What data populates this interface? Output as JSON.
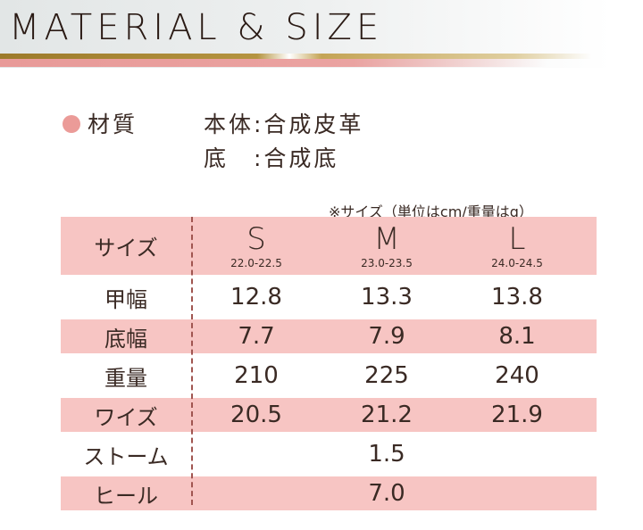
{
  "banner": {
    "title": "MATERIAL & SIZE"
  },
  "material": {
    "label": "材質",
    "lines": [
      "本体:合成皮革",
      "底　:合成底"
    ]
  },
  "note": "※サイズ（単位はcm/重量はg）",
  "table": {
    "header": {
      "label": "サイズ",
      "sizes": [
        {
          "name": "S",
          "range": "22.0-22.5"
        },
        {
          "name": "M",
          "range": "23.0-23.5"
        },
        {
          "name": "L",
          "range": "24.0-24.5"
        }
      ]
    },
    "rows": [
      {
        "label": "甲幅",
        "values": [
          "12.8",
          "13.3",
          "13.8"
        ]
      },
      {
        "label": "底幅",
        "values": [
          "7.7",
          "7.9",
          "8.1"
        ]
      },
      {
        "label": "重量",
        "values": [
          "210",
          "225",
          "240"
        ]
      },
      {
        "label": "ワイズ",
        "values": [
          "20.5",
          "21.2",
          "21.9"
        ]
      },
      {
        "label": "ストーム",
        "value": "1.5"
      },
      {
        "label": "ヒール",
        "value": "7.0"
      }
    ]
  },
  "colors": {
    "pink": "#f7c5c3",
    "dot": "#eb9b98",
    "gold": "#b59440"
  }
}
